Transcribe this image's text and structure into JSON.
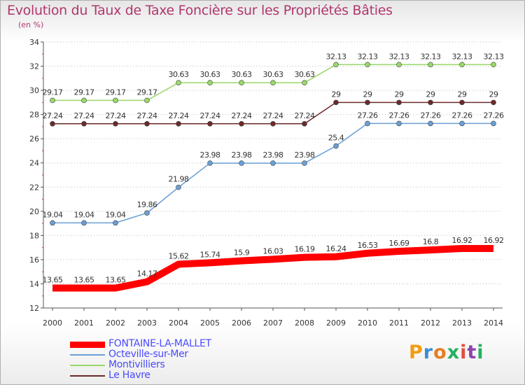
{
  "chart_data": {
    "type": "line",
    "title": "Evolution du Taux de Taxe Foncière sur les Propriétés Bâties",
    "ylabel": "(en %)",
    "xlabel": "",
    "ylim": [
      12,
      34
    ],
    "yticks": [
      12,
      14,
      16,
      18,
      20,
      22,
      24,
      26,
      28,
      30,
      32,
      34
    ],
    "x": [
      2000,
      2001,
      2002,
      2003,
      2004,
      2005,
      2006,
      2007,
      2008,
      2009,
      2010,
      2011,
      2012,
      2013,
      2014
    ],
    "grid": "horizontal dotted",
    "legend_position": "bottom-left",
    "series": [
      {
        "name": "FONTAINE-LA-MALLET",
        "color": "#ff0000",
        "values": [
          13.65,
          13.65,
          13.65,
          14.17,
          15.62,
          15.74,
          15.9,
          16.03,
          16.19,
          16.24,
          16.53,
          16.69,
          16.8,
          16.92,
          16.92
        ],
        "labels": [
          "13.65",
          "13.65",
          "13.65",
          "14.17",
          "15.62",
          "15.74",
          "15.9",
          "16.03",
          "16.19",
          "16.24",
          "16.53",
          "16.69",
          "16.8",
          "16.92",
          "16.92"
        ]
      },
      {
        "name": "Octeville-sur-Mer",
        "color": "#6a9fd4",
        "values": [
          19.04,
          19.04,
          19.04,
          19.86,
          21.98,
          23.98,
          23.98,
          23.98,
          23.98,
          25.4,
          27.26,
          27.26,
          27.26,
          27.26,
          27.26
        ],
        "labels": [
          "19.04",
          "19.04",
          "19.04",
          "19.86",
          "21.98",
          "23.98",
          "23.98",
          "23.98",
          "23.98",
          "25.4",
          "27.26",
          "27.26",
          "27.26",
          "27.26",
          "27.26"
        ]
      },
      {
        "name": "Montivilliers",
        "color": "#9ad86a",
        "values": [
          29.17,
          29.17,
          29.17,
          29.17,
          30.63,
          30.63,
          30.63,
          30.63,
          30.63,
          32.13,
          32.13,
          32.13,
          32.13,
          32.13,
          32.13
        ],
        "labels": [
          "29.17",
          "29.17",
          "29.17",
          "29.17",
          "30.63",
          "30.63",
          "30.63",
          "30.63",
          "30.63",
          "32.13",
          "32.13",
          "32.13",
          "32.13",
          "32.13",
          "32.13"
        ]
      },
      {
        "name": "Le Havre",
        "color": "#6b2a2a",
        "values": [
          27.24,
          27.24,
          27.24,
          27.24,
          27.24,
          27.24,
          27.24,
          27.24,
          27.24,
          29,
          29,
          29,
          29,
          29,
          29
        ],
        "labels": [
          "27.24",
          "27.24",
          "27.24",
          "27.24",
          "27.24",
          "27.24",
          "27.24",
          "27.24",
          "27.24",
          "29",
          "29",
          "29",
          "29",
          "29",
          "29"
        ]
      }
    ]
  },
  "logo": {
    "text": "Proxiti",
    "letters": [
      "P",
      "r",
      "o",
      "x",
      "i",
      "t",
      "i"
    ],
    "colors": [
      "#f39c12",
      "#3a8fd8",
      "#e67e22",
      "#27ae60",
      "#e74c3c",
      "#8e44ad",
      "#27ae60"
    ]
  }
}
